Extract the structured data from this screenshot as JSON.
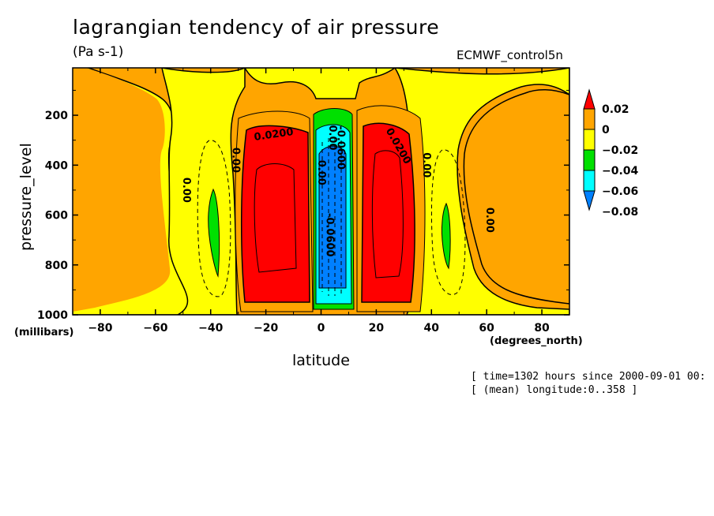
{
  "chart_data": {
    "type": "heatmap",
    "title": "lagrangian tendency of air pressure",
    "units": "(Pa s-1)",
    "dataset": "ECMWF_control5n",
    "xlabel": "latitude",
    "x_units": "(degrees_north)",
    "ylabel": "pressure_level",
    "y_units": "(millibars)",
    "xlim": [
      -90,
      90
    ],
    "ylim": [
      1000,
      10
    ],
    "x_ticks": [
      -80,
      -60,
      -40,
      -20,
      0,
      20,
      40,
      60,
      80
    ],
    "y_ticks": [
      1000,
      800,
      600,
      400,
      200
    ],
    "legend": {
      "colors": [
        "#ff0000",
        "#ffa500",
        "#ffff00",
        "#00e000",
        "#00ffff",
        "#0080ff"
      ],
      "labels": [
        "0.02",
        "0",
        "−0.02",
        "−0.04",
        "−0.06",
        "−0.08"
      ]
    },
    "contour_labels": [
      {
        "text": "0.0200",
        "lat": -17,
        "p": 290
      },
      {
        "text": "0.0200",
        "lat": 27,
        "p": 330
      },
      {
        "text": "0.00",
        "lat": -50,
        "p": 500
      },
      {
        "text": "0.00",
        "lat": -32,
        "p": 380
      },
      {
        "text": "0.00",
        "lat": 37,
        "p": 400
      },
      {
        "text": "0.00",
        "lat": 60,
        "p": 620
      },
      {
        "text": "0.00",
        "lat": -1,
        "p": 430
      },
      {
        "text": "0.00",
        "lat": 3,
        "p": 290
      },
      {
        "text": "-0.0600",
        "lat": 2,
        "p": 680
      },
      {
        "text": "-0.0600",
        "lat": 6,
        "p": 330
      }
    ],
    "annotations": [
      "[ time=1302 hours since 2000-09-01 00:",
      "[ (mean) longitude:0..358 ]"
    ]
  }
}
